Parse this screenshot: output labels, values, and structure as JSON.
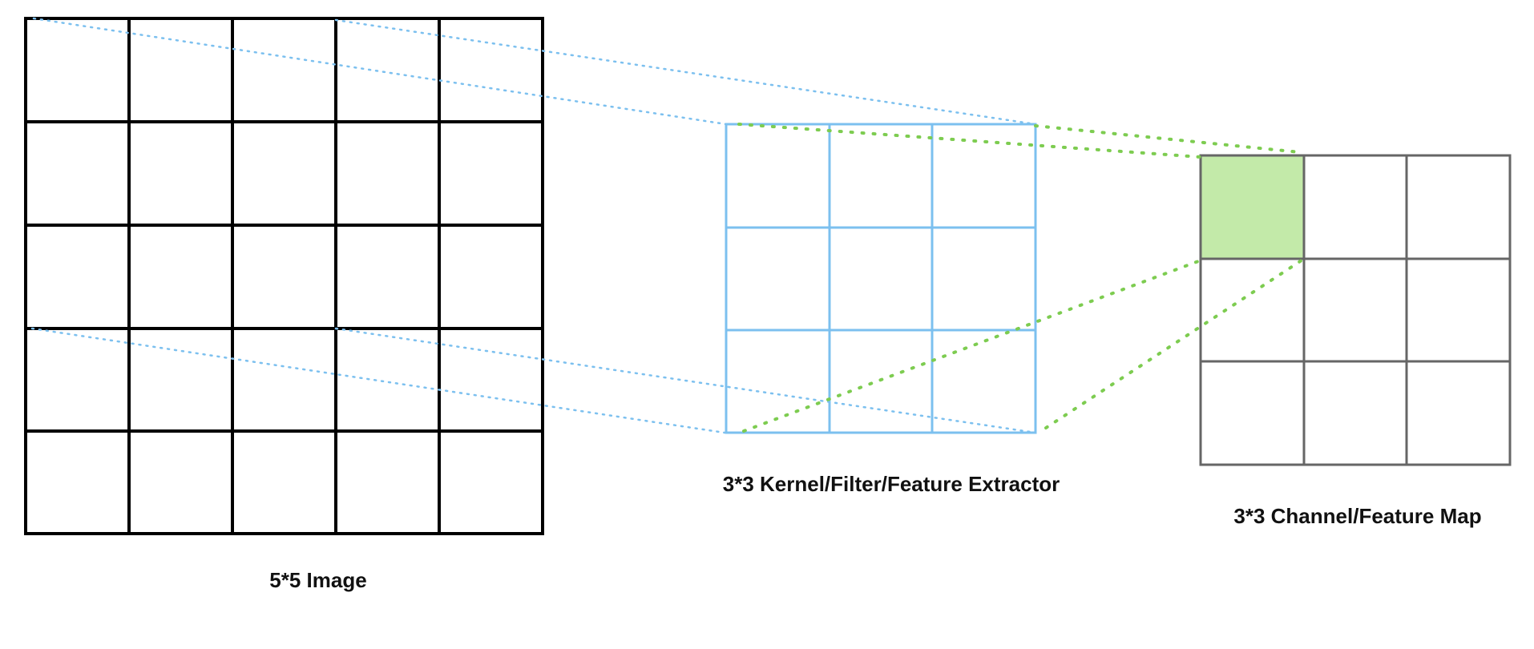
{
  "labels": {
    "image": "5*5 Image",
    "kernel": "3*3 Kernel/Filter/Feature Extractor",
    "feature_map": "3*3 Channel/Feature Map"
  },
  "grids": {
    "image": {
      "rows": 5,
      "cols": 5
    },
    "kernel": {
      "rows": 3,
      "cols": 3
    },
    "feature_map": {
      "rows": 3,
      "cols": 3,
      "highlighted_cell": [
        0,
        0
      ]
    }
  },
  "colors": {
    "image_grid": "#000000",
    "kernel_grid": "#7cc0ef",
    "feature_map_grid": "#666666",
    "image_to_kernel_lines": "#7cc0ef",
    "kernel_to_map_lines": "#7dcc50",
    "highlight_fill": "#c3eaa9"
  }
}
